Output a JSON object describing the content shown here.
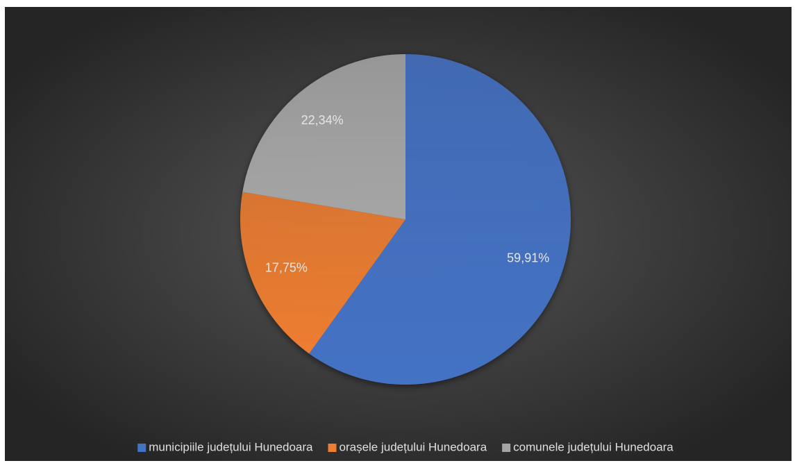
{
  "chart_data": {
    "type": "pie",
    "categories": [
      "municipiile județului Hunedoara",
      "orașele județului Hunedoara",
      "comunele județului Hunedoara"
    ],
    "values": [
      59.91,
      17.75,
      22.34
    ],
    "value_labels": [
      "59,91%",
      "17,75%",
      "22,34%"
    ],
    "colors": [
      "#4472c4",
      "#ed7d31",
      "#a5a5a5"
    ],
    "legend": "bottom"
  }
}
